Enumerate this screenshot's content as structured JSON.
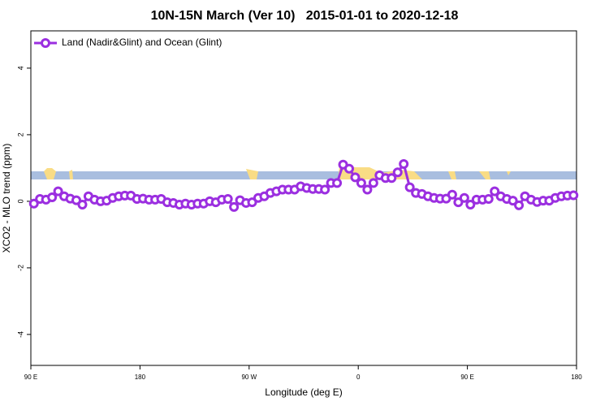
{
  "chart_data": {
    "type": "line",
    "title": "10N-15N March (Ver 10)   2015-01-01 to 2020-12-18",
    "x_label": "Longitude (deg E)",
    "y_label": "XCO2 - MLO trend (ppm)",
    "xlim": [
      90,
      540
    ],
    "ylim": [
      -4.93,
      5.12
    ],
    "xticks": [
      {
        "value": 90,
        "label": "90 E"
      },
      {
        "value": 180,
        "label": "180"
      },
      {
        "value": 270,
        "label": "90 W"
      },
      {
        "value": 360,
        "label": "0"
      },
      {
        "value": 450,
        "label": "90 E"
      },
      {
        "value": 540,
        "label": "180"
      }
    ],
    "yticks": [
      -4,
      -2,
      0,
      2,
      4
    ],
    "legend": "top-left",
    "series": [
      {
        "name": "Land (Nadir&Glint) and Ocean (Glint)",
        "color": "#9b2fe0",
        "x": [
          92.5,
          97.5,
          102.5,
          107.5,
          112.5,
          117.5,
          122.5,
          127.5,
          132.5,
          137.5,
          142.5,
          147.5,
          152.5,
          157.5,
          162.5,
          167.5,
          172.5,
          177.5,
          182.5,
          187.5,
          192.5,
          197.5,
          202.5,
          207.5,
          212.5,
          217.5,
          222.5,
          227.5,
          232.5,
          237.5,
          242.5,
          247.5,
          252.5,
          257.5,
          262.5,
          267.5,
          272.5,
          277.5,
          282.5,
          287.5,
          292.5,
          297.5,
          302.5,
          307.5,
          312.5,
          317.5,
          322.5,
          327.5,
          332.5,
          337.5,
          342.5,
          347.5,
          352.5,
          357.5,
          362.5,
          367.5,
          372.5,
          377.5,
          382.5,
          387.5,
          392.5,
          397.5,
          402.5,
          407.5,
          412.5,
          417.5,
          422.5,
          427.5,
          432.5,
          437.5,
          442.5,
          447.5,
          452.5,
          457.5,
          462.5,
          467.5,
          472.5,
          477.5,
          482.5,
          487.5,
          492.5,
          497.5,
          502.5,
          507.5,
          512.5,
          517.5,
          522.5,
          527.5,
          532.5,
          537.5
        ],
        "values": [
          -0.07,
          0.07,
          0.05,
          0.12,
          0.3,
          0.15,
          0.08,
          0.03,
          -0.1,
          0.15,
          0.05,
          0.0,
          0.02,
          0.1,
          0.15,
          0.17,
          0.17,
          0.07,
          0.08,
          0.05,
          0.05,
          0.07,
          -0.03,
          -0.05,
          -0.1,
          -0.07,
          -0.1,
          -0.07,
          -0.07,
          0.0,
          -0.03,
          0.05,
          0.07,
          -0.17,
          0.03,
          -0.05,
          -0.03,
          0.1,
          0.15,
          0.25,
          0.3,
          0.35,
          0.35,
          0.35,
          0.45,
          0.4,
          0.37,
          0.37,
          0.35,
          0.55,
          0.55,
          1.1,
          0.98,
          0.72,
          0.55,
          0.35,
          0.55,
          0.78,
          0.7,
          0.7,
          0.87,
          1.12,
          0.42,
          0.25,
          0.22,
          0.15,
          0.1,
          0.08,
          0.08,
          0.2,
          -0.03,
          0.1,
          -0.1,
          0.05,
          0.05,
          0.07,
          0.3,
          0.15,
          0.07,
          0.02,
          -0.12,
          0.15,
          0.05,
          -0.02,
          0.02,
          0.02,
          0.1,
          0.15,
          0.17,
          0.18
        ]
      }
    ]
  }
}
